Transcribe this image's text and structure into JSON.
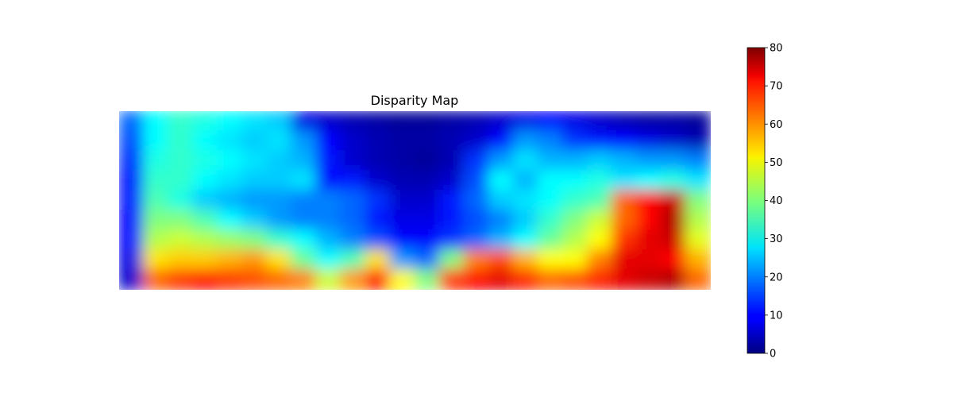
{
  "chart_data": {
    "type": "heatmap",
    "title": "Disparity Map",
    "colormap": "jet",
    "axes_visible": false,
    "grid": false,
    "colorbar": {
      "location": "right",
      "range": [
        0,
        80
      ],
      "ticks": [
        0,
        10,
        20,
        30,
        40,
        50,
        60,
        70,
        80
      ],
      "tick_labels": [
        "0",
        "10",
        "20",
        "30",
        "40",
        "50",
        "60",
        "70",
        "80"
      ]
    },
    "grid_shape": [
      9,
      24
    ],
    "values": [
      [
        18,
        30,
        34,
        32,
        30,
        28,
        26,
        8,
        6,
        4,
        3,
        2,
        2,
        3,
        4,
        6,
        8,
        10,
        8,
        6,
        4,
        3,
        3,
        2
      ],
      [
        16,
        30,
        34,
        30,
        28,
        26,
        28,
        22,
        10,
        6,
        4,
        3,
        3,
        4,
        6,
        10,
        22,
        20,
        14,
        12,
        10,
        8,
        6,
        4
      ],
      [
        14,
        32,
        34,
        32,
        30,
        28,
        26,
        24,
        12,
        6,
        4,
        3,
        2,
        4,
        14,
        22,
        28,
        24,
        24,
        26,
        24,
        22,
        22,
        20
      ],
      [
        12,
        34,
        34,
        30,
        28,
        26,
        26,
        28,
        10,
        12,
        6,
        4,
        4,
        6,
        16,
        30,
        24,
        30,
        30,
        32,
        28,
        30,
        32,
        28
      ],
      [
        12,
        36,
        32,
        26,
        24,
        22,
        22,
        20,
        20,
        18,
        14,
        6,
        6,
        12,
        18,
        26,
        28,
        30,
        34,
        36,
        62,
        70,
        74,
        40
      ],
      [
        10,
        40,
        40,
        36,
        30,
        26,
        22,
        20,
        20,
        18,
        12,
        8,
        8,
        12,
        16,
        20,
        26,
        34,
        40,
        46,
        62,
        70,
        76,
        44
      ],
      [
        10,
        44,
        46,
        44,
        42,
        40,
        34,
        30,
        24,
        20,
        16,
        10,
        10,
        14,
        18,
        24,
        30,
        38,
        44,
        50,
        66,
        72,
        74,
        48
      ],
      [
        8,
        52,
        54,
        54,
        56,
        58,
        52,
        38,
        30,
        36,
        52,
        22,
        18,
        40,
        60,
        64,
        56,
        50,
        50,
        60,
        72,
        72,
        70,
        56
      ],
      [
        6,
        62,
        66,
        70,
        66,
        64,
        62,
        60,
        46,
        58,
        70,
        50,
        40,
        66,
        70,
        72,
        68,
        62,
        64,
        68,
        72,
        74,
        76,
        62
      ]
    ]
  }
}
